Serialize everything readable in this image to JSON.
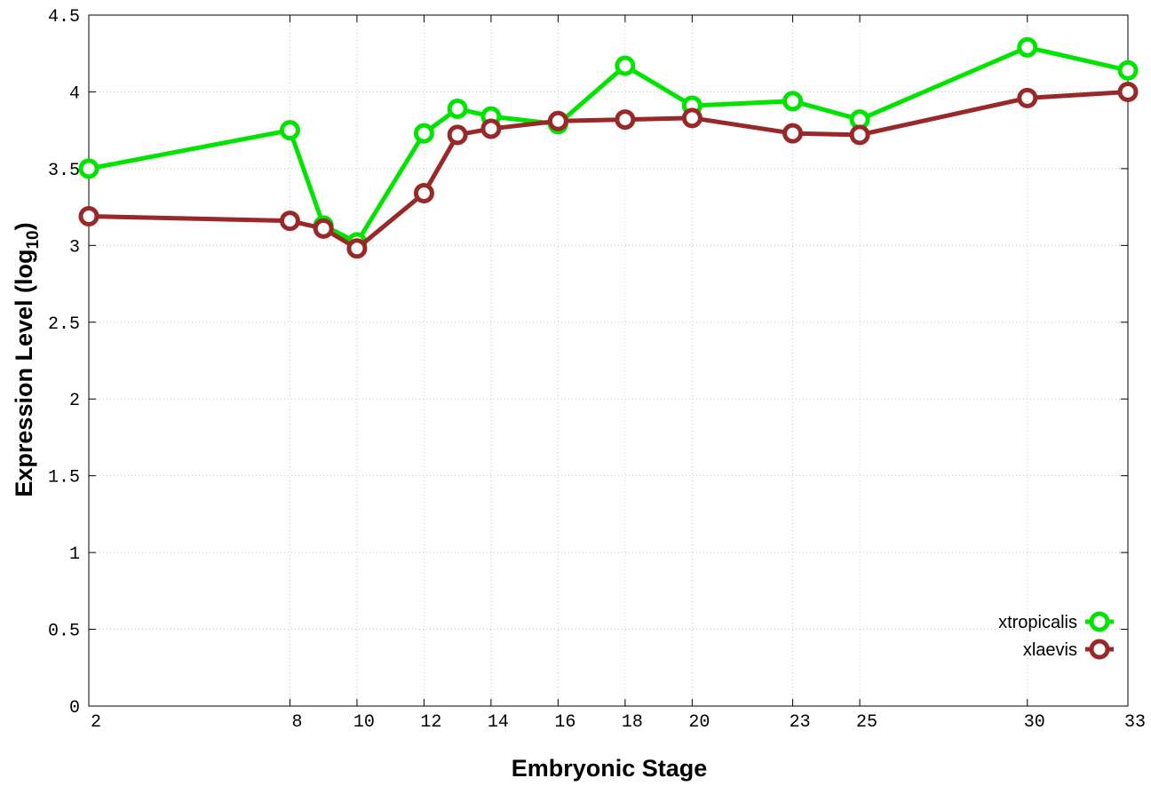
{
  "chart_data": {
    "type": "line",
    "xlabel": "Embryonic Stage",
    "ylabel_main": "Expression Level (log",
    "ylabel_sub": "10",
    "ylabel_close": ")",
    "x": [
      2,
      8,
      9,
      10,
      12,
      13,
      14,
      16,
      18,
      20,
      23,
      25,
      30,
      33
    ],
    "x_tick_labels": [
      "2",
      "8",
      "10",
      "12",
      "14",
      "16",
      "18",
      "20",
      "23",
      "25",
      "30",
      "33"
    ],
    "y_tick_labels": [
      "0",
      "0.5",
      "1",
      "1.5",
      "2",
      "2.5",
      "3",
      "3.5",
      "4",
      "4.5"
    ],
    "xlim": [
      2,
      33
    ],
    "ylim": [
      0,
      4.5
    ],
    "grid": true,
    "legend_position": "bottom-right",
    "series": [
      {
        "name": "xtropicalis",
        "color": "#00e400",
        "values": [
          3.5,
          3.75,
          3.13,
          3.02,
          3.73,
          3.89,
          3.84,
          3.79,
          4.17,
          3.91,
          3.94,
          3.82,
          4.29,
          4.14
        ]
      },
      {
        "name": "xlaevis",
        "color": "#992828",
        "values": [
          3.19,
          3.16,
          3.11,
          2.98,
          3.34,
          3.72,
          3.76,
          3.81,
          3.82,
          3.83,
          3.73,
          3.72,
          3.96,
          4.0
        ]
      }
    ]
  }
}
